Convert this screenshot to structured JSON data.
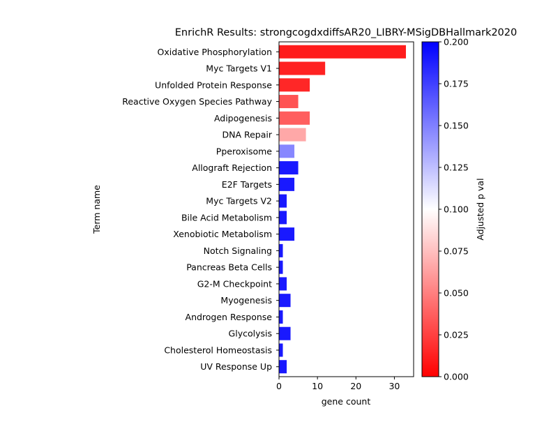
{
  "chart_data": {
    "type": "bar",
    "orientation": "horizontal",
    "title": "EnrichR Results: strongcogdxdiffsAR20_LIBRY-MSigDBHallmark2020",
    "xlabel": "gene count",
    "ylabel": "Term name",
    "xlim": [
      0,
      35
    ],
    "x_ticks": [
      0,
      10,
      20,
      30
    ],
    "categories": [
      "Oxidative Phosphorylation",
      "Myc Targets V1",
      "Unfolded Protein Response",
      "Reactive Oxygen Species Pathway",
      "Adipogenesis",
      "DNA Repair",
      "Pperoxisome",
      "Allograft Rejection",
      "E2F Targets",
      "Myc Targets V2",
      "Bile Acid Metabolism",
      "Xenobiotic Metabolism",
      "Notch Signaling",
      "Pancreas Beta Cells",
      "G2-M Checkpoint",
      "Myogenesis",
      "Androgen Response",
      "Glycolysis",
      "Cholesterol Homeostasis",
      "UV Response Up"
    ],
    "values": [
      33,
      12,
      8,
      5,
      8,
      7,
      4,
      5,
      4,
      2,
      2,
      4,
      1,
      1,
      2,
      3,
      1,
      3,
      1,
      2
    ],
    "adjusted_p_values": [
      0.001,
      0.004,
      0.006,
      0.025,
      0.03,
      0.062,
      0.152,
      0.2,
      0.2,
      0.2,
      0.2,
      0.2,
      0.2,
      0.2,
      0.2,
      0.2,
      0.2,
      0.2,
      0.2,
      0.2
    ],
    "colorbar": {
      "label": "Adjusted p val",
      "range": [
        0.0,
        0.2
      ],
      "ticks": [
        "0.000",
        "0.025",
        "0.050",
        "0.075",
        "0.100",
        "0.125",
        "0.150",
        "0.175",
        "0.200"
      ],
      "colormap": [
        "#ff0000",
        "#ffffff",
        "#0000ff"
      ]
    },
    "grid": false,
    "legend": "none"
  }
}
